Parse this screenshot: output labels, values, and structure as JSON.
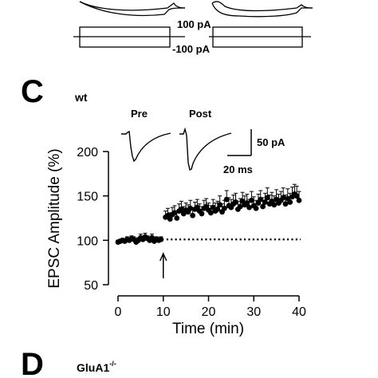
{
  "panels": {
    "top": {
      "stim_high": "100 pA",
      "stim_low": "-100 pA"
    },
    "c": {
      "letter": "C",
      "genotype": "wt"
    },
    "d": {
      "letter": "D",
      "genotype_base": "GluA1",
      "genotype_sup": "-/-"
    }
  },
  "chart_data": {
    "type": "scatter",
    "title": "",
    "xlabel": "Time (min)",
    "ylabel": "EPSC Amplitude (%)",
    "xlim": [
      0,
      40
    ],
    "ylim": [
      50,
      200
    ],
    "xticks": [
      0,
      10,
      20,
      30,
      40
    ],
    "yticks": [
      50,
      100,
      150,
      200
    ],
    "baseline": 101,
    "arrow_x": 10,
    "trace_labels": {
      "pre": "Pre",
      "post": "Post"
    },
    "scalebar": {
      "amplitude": "50 pA",
      "time": "20 ms"
    },
    "series": [
      {
        "x": [
          0.0,
          0.5,
          1.0,
          1.5,
          2.0,
          2.5,
          3.0,
          3.5,
          4.0,
          4.5,
          5.0,
          5.5,
          6.0,
          6.5,
          7.0,
          7.5,
          8.0,
          8.5,
          9.0,
          9.5
        ],
        "y": [
          98,
          99,
          100,
          99,
          101,
          100,
          102,
          101,
          98,
          100,
          103,
          101,
          104,
          102,
          100,
          103,
          99,
          101,
          100,
          101
        ],
        "err": [
          2,
          2,
          2,
          2,
          3,
          2,
          3,
          3,
          3,
          3,
          4,
          3,
          4,
          3,
          3,
          4,
          3,
          3,
          3,
          3
        ]
      },
      {
        "x": [
          10.5,
          11.0,
          11.5,
          12.0,
          12.5,
          13.0,
          13.5,
          14.0,
          14.5,
          15.0,
          15.5,
          16.0,
          16.5,
          17.0,
          17.5,
          18.0,
          18.5,
          19.0,
          19.5,
          20.0,
          20.5,
          21.0,
          21.5,
          22.0,
          22.5,
          23.0,
          23.5,
          24.0,
          24.5,
          25.0,
          25.5,
          26.0,
          26.5,
          27.0,
          27.5,
          28.0,
          28.5,
          29.0,
          29.5,
          30.0,
          30.5,
          31.0,
          31.5,
          32.0,
          32.5,
          33.0,
          33.5,
          34.0,
          34.5,
          35.0,
          35.5,
          36.0,
          36.5,
          37.0,
          37.5,
          38.0,
          38.5,
          39.0,
          39.5,
          40.0
        ],
        "y": [
          126,
          128,
          124,
          129,
          131,
          125,
          133,
          135,
          130,
          134,
          132,
          136,
          128,
          135,
          137,
          133,
          130,
          136,
          138,
          134,
          131,
          137,
          133,
          135,
          140,
          132,
          136,
          146,
          139,
          137,
          141,
          143,
          135,
          138,
          144,
          140,
          142,
          137,
          145,
          139,
          136,
          142,
          146,
          138,
          143,
          148,
          141,
          144,
          140,
          146,
          142,
          145,
          148,
          141,
          147,
          143,
          149,
          152,
          150,
          145
        ],
        "err": [
          7,
          8,
          7,
          8,
          8,
          7,
          8,
          9,
          8,
          8,
          8,
          9,
          8,
          8,
          9,
          8,
          8,
          9,
          9,
          8,
          8,
          9,
          9,
          9,
          10,
          9,
          9,
          10,
          9,
          9,
          10,
          10,
          9,
          9,
          10,
          10,
          10,
          9,
          10,
          10,
          9,
          10,
          10,
          10,
          10,
          11,
          10,
          10,
          10,
          11,
          10,
          10,
          11,
          10,
          11,
          10,
          11,
          11,
          11,
          10
        ]
      }
    ]
  }
}
